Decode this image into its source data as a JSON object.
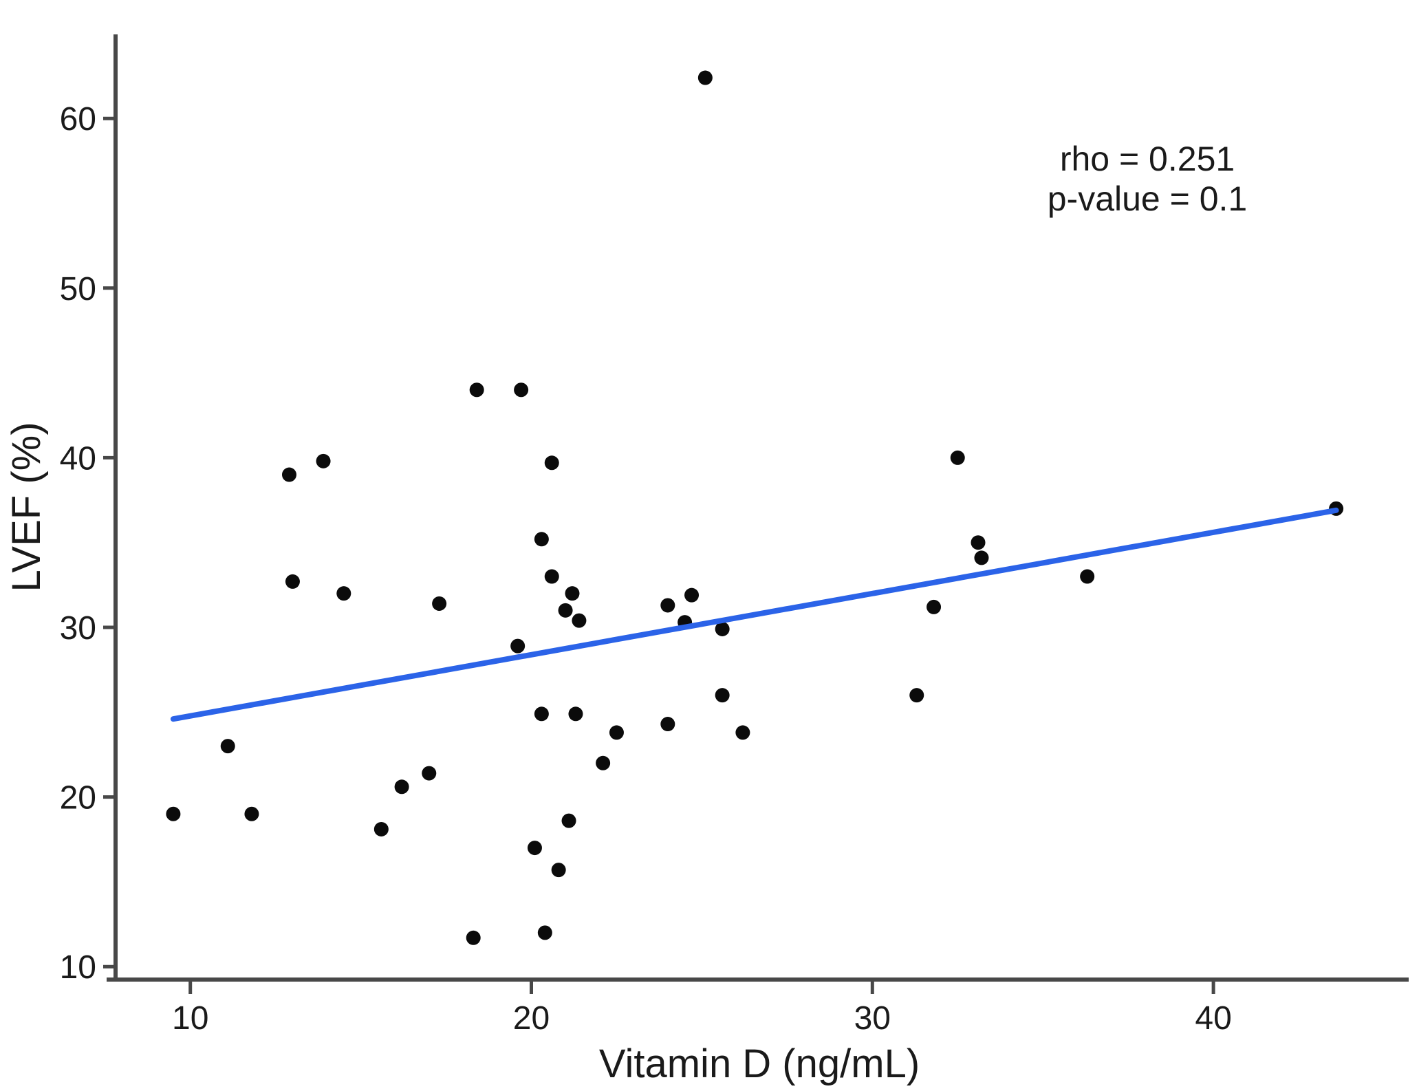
{
  "chart_data": {
    "type": "scatter",
    "title": "",
    "xlabel": "Vitamin D (ng/mL)",
    "ylabel": "LVEF (%)",
    "x_ticks": [
      10,
      20,
      30,
      40
    ],
    "y_ticks": [
      10,
      20,
      30,
      40,
      50,
      60
    ],
    "xlim": [
      7.8,
      45.6
    ],
    "ylim": [
      9.2,
      65.0
    ],
    "grid": false,
    "legend_position": "none",
    "annotation_lines": [
      "rho = 0.251",
      "p-value = 0.1"
    ],
    "points": [
      [
        9.5,
        19
      ],
      [
        11.1,
        23
      ],
      [
        11.8,
        19
      ],
      [
        12.9,
        39
      ],
      [
        13,
        32.7
      ],
      [
        13.9,
        39.8
      ],
      [
        14.5,
        32
      ],
      [
        15.6,
        18.1
      ],
      [
        16.2,
        20.6
      ],
      [
        17,
        21.4
      ],
      [
        17.3,
        31.4
      ],
      [
        18.3,
        11.7
      ],
      [
        18.4,
        44
      ],
      [
        19.6,
        28.9
      ],
      [
        19.7,
        44
      ],
      [
        20.1,
        17
      ],
      [
        20.3,
        24.9
      ],
      [
        20.3,
        35.2
      ],
      [
        20.4,
        12
      ],
      [
        20.6,
        33
      ],
      [
        20.6,
        39.7
      ],
      [
        20.8,
        15.7
      ],
      [
        21,
        31
      ],
      [
        21.1,
        18.6
      ],
      [
        21.2,
        32
      ],
      [
        21.3,
        24.9
      ],
      [
        21.4,
        30.4
      ],
      [
        22.1,
        22
      ],
      [
        22.5,
        23.8
      ],
      [
        24,
        24.3
      ],
      [
        24,
        31.3
      ],
      [
        24.5,
        30.3
      ],
      [
        24.7,
        31.9
      ],
      [
        25.1,
        62.4
      ],
      [
        25.6,
        26
      ],
      [
        25.6,
        29.9
      ],
      [
        26.2,
        23.8
      ],
      [
        31.3,
        26
      ],
      [
        31.8,
        31.2
      ],
      [
        32.5,
        40
      ],
      [
        33.1,
        35
      ],
      [
        33.2,
        34.1
      ],
      [
        36.3,
        33
      ],
      [
        43.6,
        37
      ]
    ],
    "trend_line": {
      "x1": 9.5,
      "y1": 24.6,
      "x2": 43.6,
      "y2": 36.9
    },
    "colors": {
      "point": "#0b0b0b",
      "trend": "#2b63e8",
      "axis": "#484848",
      "text": "#1a1a1a"
    }
  }
}
